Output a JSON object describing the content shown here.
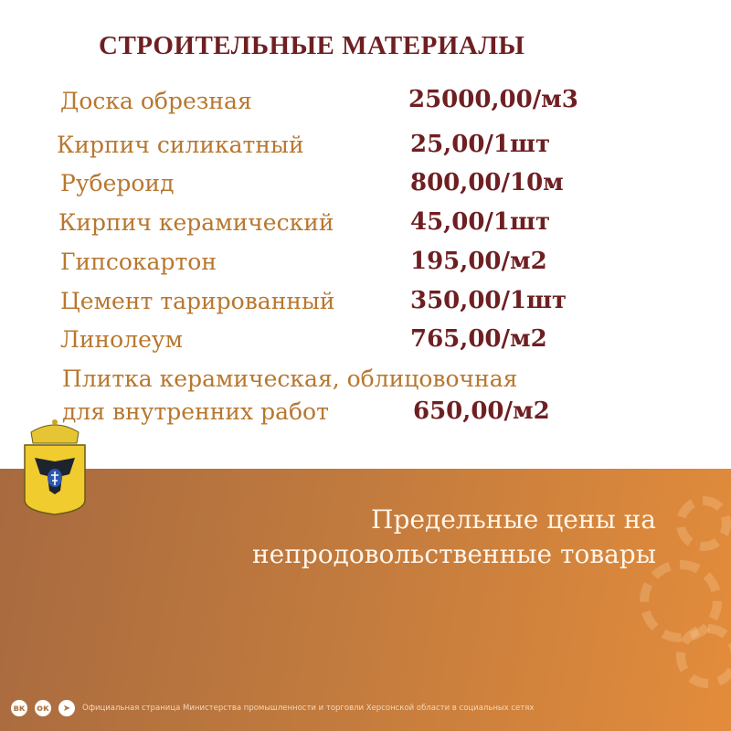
{
  "title": "СТРОИТЕЛЬНЫЕ МАТЕРИАЛЫ",
  "items": [
    {
      "name": "Доска обрезная",
      "price": "25000,00/м3"
    },
    {
      "name": "Кирпич силикатный",
      "price": "25,00/1шт"
    },
    {
      "name": "Рубероид",
      "price": "800,00/10м"
    },
    {
      "name": "Кирпич керамический",
      "price": "45,00/1шт"
    },
    {
      "name": "Гипсокартон",
      "price": "195,00/м2"
    },
    {
      "name": "Цемент тарированный",
      "price": "350,00/1шт"
    },
    {
      "name": "Линолеум",
      "price": "765,00/м2"
    },
    {
      "name": "Плитка керамическая, облицовочная",
      "name2": "для внутренних работ",
      "price": "650,00/м2"
    }
  ],
  "slogan": {
    "line1": "Предельные цены на",
    "line2": "непродовольственные товары"
  },
  "footer": {
    "text": "Официальная страница Министерства промышленности и торговли Херсонской области в социальных сетях",
    "icons": [
      "vk-icon",
      "odnoklassniki-icon",
      "telegram-icon"
    ]
  },
  "colors": {
    "title": "#6e1f22",
    "item": "#b8772f",
    "band_start": "#a86a3f",
    "band_end": "#e38c3b"
  }
}
